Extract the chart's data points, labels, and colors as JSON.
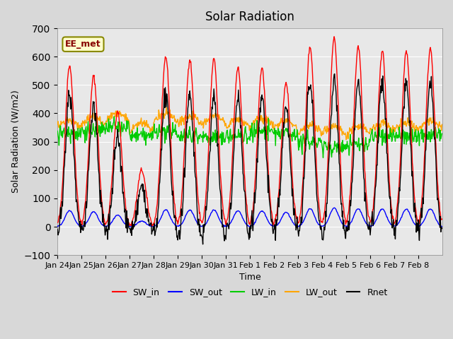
{
  "title": "Solar Radiation",
  "xlabel": "Time",
  "ylabel": "Solar Radiation (W/m2)",
  "ylim": [
    -100,
    700
  ],
  "yticks": [
    -100,
    0,
    100,
    200,
    300,
    400,
    500,
    600,
    700
  ],
  "colors": {
    "SW_in": "#ff0000",
    "SW_out": "#0000ff",
    "LW_in": "#00cc00",
    "LW_out": "#ffa500",
    "Rnet": "#000000"
  },
  "label_box_color": "#ffffcc",
  "label_box_edge": "#888800",
  "label_text": "EE_met",
  "label_text_color": "#880000",
  "xtick_labels": [
    "Jan 24",
    "Jan 25",
    "Jan 26",
    "Jan 27",
    "Jan 28",
    "Jan 29",
    "Jan 30",
    "Jan 31",
    "Feb 1",
    "Feb 2",
    "Feb 3",
    "Feb 4",
    "Feb 5",
    "Feb 6",
    "Feb 7",
    "Feb 8"
  ],
  "grid_color": "#ffffff",
  "line_width": 1.0
}
